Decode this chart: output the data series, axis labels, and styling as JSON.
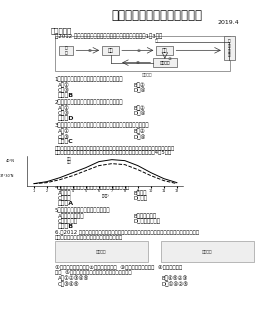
{
  "title": "地理精品教学资料（新教材）",
  "date": "2019.4",
  "bg_color": "#ffffff",
  "text_color": "#111111",
  "title_fontsize": 9,
  "body_fontsize": 4.2,
  "section": "一、选择题",
  "intro1": "（2012 福建第一轮题）下图为大气热力作用示意图，完成1～3题。",
  "q1": "1．图中标示地面大气的热量主要来自（　　）",
  "q1a": "A．①",
  "q1b": "B．②",
  "q1c": "C．③",
  "q1d": "D．④",
  "q1ans": "答案：B",
  "q2": "2．白天多云时，气温比晴天低是因为（　　）",
  "q2a": "A．①",
  "q2b": "B．②",
  "q2c": "C．③",
  "q2d": "D．④",
  "q2ans": "答案：D",
  "q3": "3．早春和晚秋，多云的夜晚少有霜冻，起主要作用的是（　　）",
  "q3a": "A．①",
  "q3b": "B．②",
  "q3c": "C．③",
  "q3d": "D．④",
  "q3ans": "答案：C",
  "intro2a": "北京某中学地理研究性学习小组对高低温差进行探究性学习，下图是通过美国数字天",
  "intro2b": "气预报软件的内陆某郊区地区的平均地温，结合右侧曲线图，做比回答4～5题。",
  "q4": "4．影响地面水加热过到湿润的主要因素是　（　）",
  "q4a": "A．气温",
  "q4b": "B．降水",
  "q4c": "C．地形",
  "q4d": "D．植被",
  "q4ans": "答案：A",
  "q5": "5．有利于雷雨发生的条件是（　　）",
  "q5a": "A．气温口较多水",
  "q5b": "B．地面辐射强",
  "q5c": "C．风力强劲",
  "q5d": "D．大气逆辐射强",
  "q5ans": "答案：B",
  "q6a": "6.（2012 深圳学业水平测试）在温成反应与防对比线的比较图中，对含有高原比图对比出高，",
  "q6b": "气温日较差大月水，原因是含高高原的（　　）",
  "body2a": "①地势高，离太阳近　②太阳高度角较小  ③云以层厚，而且高长  ④海拔高，空气",
  "body2b": "稀薄  ⑤白天大气辐射较强，近地面大气逆辐射较弱",
  "q6oa": "A．①②③④⑤",
  "q6ob": "B．④⑤②③",
  "q6oc": "C．③④⑤",
  "q6od": "D．①④②⑤",
  "sunny": [
    2,
    4,
    8,
    13,
    18,
    24,
    26,
    25,
    20,
    13,
    7,
    3
  ],
  "cloudy": [
    2,
    3,
    6,
    10,
    15,
    20,
    22,
    21,
    16,
    10,
    5,
    2
  ]
}
